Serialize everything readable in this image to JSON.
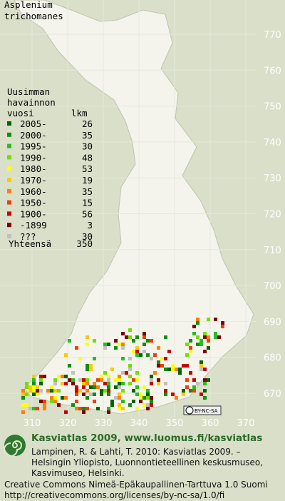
{
  "title_lines": [
    "Asplenium",
    "trichomanes"
  ],
  "legend": {
    "heading_lines": [
      "Uusimman",
      "havainnon",
      "vuosi"
    ],
    "count_heading": "lkm",
    "items": [
      {
        "label": "2005-",
        "count": 26,
        "color": "#006400"
      },
      {
        "label": "2000-",
        "count": 35,
        "color": "#109010"
      },
      {
        "label": "1995-",
        "count": 30,
        "color": "#22c022"
      },
      {
        "label": "1990-",
        "count": 48,
        "color": "#70e000"
      },
      {
        "label": "1980-",
        "count": 53,
        "color": "#ffff00"
      },
      {
        "label": "1970-",
        "count": 19,
        "color": "#ffc800"
      },
      {
        "label": "1960-",
        "count": 35,
        "color": "#ff8000"
      },
      {
        "label": "1950-",
        "count": 15,
        "color": "#f04000"
      },
      {
        "label": "1900-",
        "count": 56,
        "color": "#c80000"
      },
      {
        "label": "-1899",
        "count": 3,
        "color": "#800000"
      },
      {
        "label": "???",
        "count": 30,
        "color": "#c0c0c0"
      }
    ],
    "total_label": "Yhteensä",
    "total": 350
  },
  "grid": {
    "north_labels": [
      770,
      760,
      750,
      740,
      730,
      720,
      710,
      700,
      690,
      680,
      670
    ],
    "east_labels": [
      310,
      320,
      330,
      340,
      350,
      360,
      370
    ]
  },
  "license_badge": "BY-NC-SA",
  "footer": {
    "heading": "Kasviatlas 2009, www.luomus.fi/kasviatlas",
    "citation_lines": [
      "Lampinen, R. & Lahti, T. 2010: Kasviatlas 2009. –",
      "Helsingin Yliopisto, Luonnontieteellinen keskusmuseo,",
      "Kasvimuseo, Helsinki."
    ],
    "license_lines": [
      "Creative Commons Nimeä-Epäkaupallinen-Tarttuva 1.0 Suomi",
      "http://creativecommons.org/licenses/by-nc-sa/1.0/fi"
    ]
  }
}
